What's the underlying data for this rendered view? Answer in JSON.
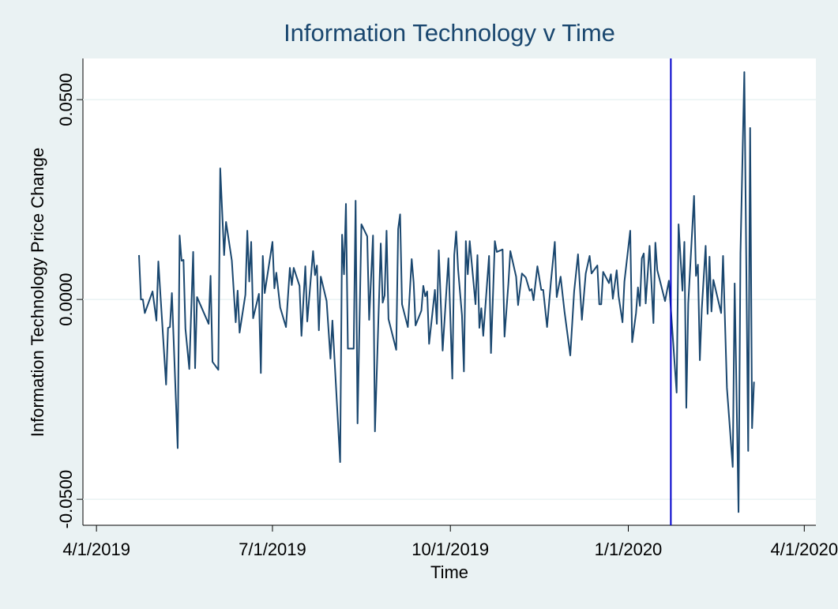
{
  "chart_data": {
    "type": "line",
    "title": "Information Technology v Time",
    "x_label": "Time",
    "y_label": "Information Technology Price Change",
    "color": "#1a476f",
    "grid": true,
    "vline": {
      "x": "1/23/2020",
      "color": "#0000cc"
    },
    "xlim": [
      "3/25/2019",
      "4/7/2020"
    ],
    "xticks": [
      "4/1/2019",
      "7/1/2019",
      "10/1/2019",
      "1/1/2020",
      "4/1/2020"
    ],
    "ylim": [
      -0.0565,
      0.0603
    ],
    "yticks": [
      {
        "value": -0.05,
        "label": "-0.0500"
      },
      {
        "value": 0,
        "label": "0.0000"
      },
      {
        "value": 0.05,
        "label": "0.0500"
      }
    ],
    "x": [
      "4/23/2019",
      "4/24/2019",
      "4/25/2019",
      "4/26/2019",
      "4/30/2019",
      "5/2/2019",
      "5/3/2019",
      "5/7/2019",
      "5/8/2019",
      "5/9/2019",
      "5/10/2019",
      "5/13/2019",
      "5/14/2019",
      "5/15/2019",
      "5/16/2019",
      "5/17/2019",
      "5/19/2019",
      "5/21/2019",
      "5/22/2019",
      "5/23/2019",
      "5/29/2019",
      "5/30/2019",
      "5/31/2019",
      "6/3/2019",
      "6/4/2019",
      "6/6/2019",
      "6/7/2019",
      "6/10/2019",
      "6/12/2019",
      "6/13/2019",
      "6/14/2019",
      "6/17/2019",
      "6/18/2019",
      "6/19/2019",
      "6/20/2019",
      "6/21/2019",
      "6/24/2019",
      "6/25/2019",
      "6/26/2019",
      "6/27/2019",
      "7/1/2019",
      "7/2/2019",
      "7/3/2019",
      "7/5/2019",
      "7/8/2019",
      "7/10/2019",
      "7/11/2019",
      "7/12/2019",
      "7/15/2019",
      "7/16/2019",
      "7/18/2019",
      "7/19/2019",
      "7/22/2019",
      "7/23/2019",
      "7/24/2019",
      "7/25/2019",
      "7/26/2019",
      "7/29/2019",
      "7/31/2019",
      "8/1/2019",
      "8/5/2019",
      "8/6/2019",
      "8/7/2019",
      "8/8/2019",
      "8/9/2019",
      "8/12/2019",
      "8/13/2019",
      "8/14/2019",
      "8/16/2019",
      "8/19/2019",
      "8/20/2019",
      "8/22/2019",
      "8/23/2019",
      "8/26/2019",
      "8/27/2019",
      "8/28/2019",
      "8/29/2019",
      "8/30/2019",
      "9/3/2019",
      "9/4/2019",
      "9/5/2019",
      "9/6/2019",
      "9/9/2019",
      "9/11/2019",
      "9/12/2019",
      "9/13/2019",
      "9/16/2019",
      "9/17/2019",
      "9/18/2019",
      "9/19/2019",
      "9/20/2019",
      "9/23/2019",
      "9/24/2019",
      "9/25/2019",
      "9/27/2019",
      "9/30/2019",
      "10/2/2019",
      "10/3/2019",
      "10/4/2019",
      "10/5/2019",
      "10/7/2019",
      "10/8/2019",
      "10/9/2019",
      "10/10/2019",
      "10/11/2019",
      "10/14/2019",
      "10/15/2019",
      "10/16/2019",
      "10/17/2019",
      "10/18/2019",
      "10/21/2019",
      "10/22/2019",
      "10/24/2019",
      "10/25/2019",
      "10/28/2019",
      "10/29/2019",
      "10/31/2019",
      "11/1/2019",
      "11/4/2019",
      "11/5/2019",
      "11/7/2019",
      "11/9/2019",
      "11/11/2019",
      "11/12/2019",
      "11/13/2019",
      "11/15/2019",
      "11/17/2019",
      "11/18/2019",
      "11/20/2019",
      "11/22/2019",
      "11/24/2019",
      "11/25/2019",
      "11/27/2019",
      "11/29/2019",
      "12/2/2019",
      "12/4/2019",
      "12/6/2019",
      "12/8/2019",
      "12/10/2019",
      "12/12/2019",
      "12/13/2019",
      "12/16/2019",
      "12/17/2019",
      "12/18/2019",
      "12/19/2019",
      "12/22/2019",
      "12/23/2019",
      "12/24/2019",
      "12/26/2019",
      "12/27/2019",
      "12/29/2019",
      "12/30/2019",
      "1/2/2020",
      "1/3/2020",
      "1/5/2020",
      "1/6/2020",
      "1/7/2020",
      "1/8/2020",
      "1/9/2020",
      "1/10/2020",
      "1/12/2020",
      "1/14/2020",
      "1/15/2020",
      "1/16/2020",
      "1/20/2020",
      "1/22/2020",
      "1/26/2020",
      "1/27/2020",
      "1/29/2020",
      "1/30/2020",
      "1/31/2020",
      "2/1/2020",
      "2/4/2020",
      "2/5/2020",
      "2/6/2020",
      "2/7/2020",
      "2/8/2020",
      "2/10/2020",
      "2/11/2020",
      "2/12/2020",
      "2/13/2020",
      "2/14/2020",
      "2/18/2020",
      "2/19/2020",
      "2/21/2020",
      "2/24/2020",
      "2/25/2020",
      "2/27/2020",
      "2/28/2020",
      "3/1/2020",
      "3/3/2020",
      "3/4/2020",
      "3/5/2020",
      "3/6/2020"
    ],
    "values": [
      0.0111,
      0,
      0,
      -0.0034,
      0.002,
      -0.0053,
      0.0095,
      -0.0213,
      -0.0071,
      -0.0069,
      0.0016,
      -0.0372,
      0.016,
      0.0097,
      0.0099,
      -0.0073,
      -0.0174,
      0.0119,
      -0.0172,
      0.0006,
      -0.0061,
      0.0059,
      -0.0156,
      -0.0176,
      0.0328,
      0.0111,
      0.0194,
      0.0097,
      -0.0057,
      0.0022,
      -0.0083,
      0.0012,
      0.0172,
      0.0045,
      0.0144,
      -0.0047,
      0.0014,
      -0.0184,
      0.0109,
      0.0016,
      0.0144,
      0.0028,
      0.0067,
      -0.002,
      -0.0069,
      0.0079,
      0.0036,
      0.0079,
      0.0034,
      -0.0091,
      0.0083,
      -0.0055,
      0.0121,
      0.0061,
      0.0085,
      -0.0077,
      0.0057,
      -0.0004,
      -0.0148,
      -0.0053,
      -0.0407,
      0.0162,
      0.0063,
      0.0239,
      -0.0123,
      -0.0123,
      0.0247,
      -0.031,
      0.0188,
      0.0158,
      -0.0051,
      0.016,
      -0.033,
      0.014,
      -0.0008,
      0.001,
      0.0172,
      -0.0049,
      -0.0126,
      0.0176,
      0.0213,
      -0.0012,
      -0.0069,
      0.0101,
      0.0043,
      -0.0065,
      -0.0028,
      0.0034,
      0.0008,
      0.002,
      -0.0111,
      0.0024,
      -0.0061,
      0.0123,
      -0.0128,
      0.0103,
      -0.0198,
      0.0111,
      0.017,
      0.0075,
      -0.004,
      -0.018,
      0.0146,
      0.0063,
      0.0146,
      -0.0012,
      0.0111,
      -0.0071,
      -0.0022,
      -0.0091,
      0.0109,
      -0.0134,
      0.0146,
      0.0119,
      0.0125,
      -0.0093,
      0.004,
      0.0121,
      0.0057,
      -0.0014,
      0.0065,
      0.0055,
      0.0022,
      0.0026,
      -0.0002,
      0.0083,
      0.0024,
      0.0024,
      -0.0069,
      0.0045,
      0.0144,
      0.0006,
      0.0057,
      -0.003,
      -0.014,
      0.002,
      0.0113,
      -0.0051,
      0.0065,
      0.0109,
      0.0065,
      0.0085,
      -0.0012,
      -0.0012,
      0.0069,
      0.0041,
      0.0063,
      0.0002,
      0.0073,
      0.0008,
      -0.0057,
      0.0045,
      0.0172,
      -0.0107,
      -0.0034,
      0.003,
      -0.0016,
      0.0103,
      0.0115,
      -0.001,
      0.0134,
      -0.0059,
      0.0142,
      0.0073,
      -0.0004,
      0.0047,
      -0.0233,
      0.0188,
      0.0022,
      0.0144,
      -0.0271,
      -0.001,
      0.0259,
      0.0059,
      0.0087,
      -0.0152,
      -0.0024,
      0.0134,
      -0.0036,
      0.0107,
      -0.003,
      0.0049,
      -0.0034,
      0.0109,
      -0.0221,
      -0.0419,
      0.004,
      -0.0532,
      0.0115,
      0.0569,
      -0.0379,
      0.0429,
      -0.0322,
      -0.0206
    ]
  }
}
